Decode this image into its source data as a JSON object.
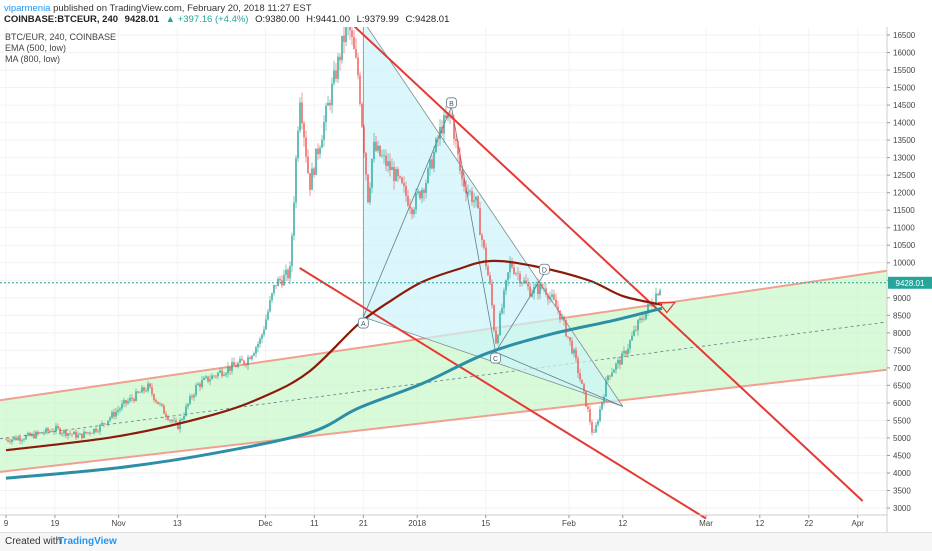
{
  "header": {
    "author": "viparmenia",
    "published": "published on TradingView.com, February 20, 2018 11:27 EST",
    "symbol": "COINBASE:BTCEUR, 240",
    "last": "9428.01",
    "change_arrow": "▲",
    "change": "+397.16 (+4.4%)",
    "open": "O:9380.00",
    "high": "H:9441.00",
    "low": "L:9379.99",
    "close": "C:9428.01"
  },
  "legend": {
    "pair": "BTC/EUR, 240, COINBASE",
    "ema": "EMA (500, low)",
    "ma": "MA (800, low)"
  },
  "footer": {
    "created": "Created with",
    "logo": "TradingView"
  },
  "price_label": "9428.01",
  "colors": {
    "bull": "#26a69a",
    "bear": "#ef5350",
    "ema": "#8b1a0a",
    "ma": "#2c8fa5",
    "trend": "#e53935",
    "channel_fill": "#b9f6b9",
    "channel_edge": "#f0a090",
    "triangle_fill": "#ccf3fa",
    "price_line": "#26a69a",
    "price_label_bg": "#26a69a"
  },
  "chart_data": {
    "type": "candlestick",
    "title": "BTC/EUR, 240, COINBASE",
    "ylim": [
      2750,
      16850
    ],
    "y_ticks": [
      3000,
      3500,
      4000,
      4500,
      5000,
      5500,
      6000,
      6500,
      7000,
      7500,
      8000,
      8500,
      9000,
      9500,
      10000,
      10500,
      11000,
      11500,
      12000,
      12500,
      13000,
      13500,
      14000,
      14500,
      15000,
      15500,
      16000,
      16500
    ],
    "x_ticks": [
      "9",
      "19",
      "Nov",
      "13",
      "Dec",
      "11",
      "21",
      "2018",
      "15",
      "Feb",
      "12",
      "Mar",
      "12",
      "22",
      "Apr"
    ],
    "price_path": [
      {
        "x": "Oct 9",
        "y": 4950
      },
      {
        "x": "Oct 14",
        "y": 5050
      },
      {
        "x": "Oct 19",
        "y": 5250
      },
      {
        "x": "Oct 24",
        "y": 5050
      },
      {
        "x": "Oct 28",
        "y": 5300
      },
      {
        "x": "Nov 2",
        "y": 5950
      },
      {
        "x": "Nov 7",
        "y": 6450
      },
      {
        "x": "Nov 10",
        "y": 5800
      },
      {
        "x": "Nov 13",
        "y": 5300
      },
      {
        "x": "Nov 17",
        "y": 6500
      },
      {
        "x": "Nov 22",
        "y": 6900
      },
      {
        "x": "Nov 27",
        "y": 7200
      },
      {
        "x": "Nov 30",
        "y": 7800
      },
      {
        "x": "Dec 3",
        "y": 9400
      },
      {
        "x": "Dec 6",
        "y": 9700
      },
      {
        "x": "Dec 8",
        "y": 14900
      },
      {
        "x": "Dec 10",
        "y": 12200
      },
      {
        "x": "Dec 13",
        "y": 14000
      },
      {
        "x": "Dec 15",
        "y": 15200
      },
      {
        "x": "Dec 17",
        "y": 16400
      },
      {
        "x": "Dec 18",
        "y": 16800
      },
      {
        "x": "Dec 20",
        "y": 15300
      },
      {
        "x": "Dec 22",
        "y": 11800
      },
      {
        "x": "Dec 23",
        "y": 13300
      },
      {
        "x": "Dec 27",
        "y": 12600
      },
      {
        "x": "Dec 31",
        "y": 11600
      },
      {
        "x": "Jan 3",
        "y": 12400
      },
      {
        "x": "Jan 6",
        "y": 13900
      },
      {
        "x": "Jan 8",
        "y": 14200
      },
      {
        "x": "Jan 10",
        "y": 12400
      },
      {
        "x": "Jan 13",
        "y": 11700
      },
      {
        "x": "Jan 16",
        "y": 9200
      },
      {
        "x": "Jan 17",
        "y": 7700
      },
      {
        "x": "Jan 20",
        "y": 10000
      },
      {
        "x": "Jan 24",
        "y": 9200
      },
      {
        "x": "Jan 27",
        "y": 9300
      },
      {
        "x": "Jan 30",
        "y": 8600
      },
      {
        "x": "Feb 2",
        "y": 7400
      },
      {
        "x": "Feb 5",
        "y": 5700
      },
      {
        "x": "Feb 6",
        "y": 5000
      },
      {
        "x": "Feb 9",
        "y": 6800
      },
      {
        "x": "Feb 12",
        "y": 7300
      },
      {
        "x": "Feb 15",
        "y": 8200
      },
      {
        "x": "Feb 18",
        "y": 8900
      },
      {
        "x": "Feb 20",
        "y": 9428
      }
    ],
    "series": [
      {
        "name": "EMA (500, low)",
        "values": [
          {
            "x": "Oct 9",
            "y": 4650
          },
          {
            "x": "Nov 1",
            "y": 5050
          },
          {
            "x": "Nov 20",
            "y": 5650
          },
          {
            "x": "Dec 1",
            "y": 6200
          },
          {
            "x": "Dec 10",
            "y": 6900
          },
          {
            "x": "Dec 20",
            "y": 8250
          },
          {
            "x": "Dec 27",
            "y": 8950
          },
          {
            "x": "Jan 2",
            "y": 9450
          },
          {
            "x": "Jan 9",
            "y": 9800
          },
          {
            "x": "Jan 16",
            "y": 10050
          },
          {
            "x": "Jan 25",
            "y": 9900
          },
          {
            "x": "Feb 5",
            "y": 9500
          },
          {
            "x": "Feb 12",
            "y": 9050
          },
          {
            "x": "Feb 20",
            "y": 8800
          }
        ]
      },
      {
        "name": "MA (800, low)",
        "values": [
          {
            "x": "Oct 9",
            "y": 3850
          },
          {
            "x": "Nov 1",
            "y": 4150
          },
          {
            "x": "Nov 20",
            "y": 4550
          },
          {
            "x": "Dec 10",
            "y": 5150
          },
          {
            "x": "Dec 20",
            "y": 5850
          },
          {
            "x": "Jan 2",
            "y": 6550
          },
          {
            "x": "Jan 15",
            "y": 7400
          },
          {
            "x": "Jan 28",
            "y": 7950
          },
          {
            "x": "Feb 10",
            "y": 8350
          },
          {
            "x": "Feb 20",
            "y": 8700
          }
        ]
      }
    ],
    "annotations": {
      "channel_upper": [
        {
          "x": "Oct 9",
          "y": 6100
        },
        {
          "x": "Apr 1",
          "y": 9650
        }
      ],
      "channel_lower": [
        {
          "x": "Oct 9",
          "y": 4050
        },
        {
          "x": "Apr 1",
          "y": 6850
        }
      ],
      "channel_mid": [
        {
          "x": "Oct 9",
          "y": 5000
        },
        {
          "x": "Apr 1",
          "y": 8200
        }
      ],
      "trend_down_1": [
        {
          "x": "Dec 18",
          "y": 16900
        },
        {
          "x": "Apr 2",
          "y": 3200
        }
      ],
      "trend_down_2": [
        {
          "x": "Dec 8",
          "y": 9850
        },
        {
          "x": "Mar 1",
          "y": 2700
        }
      ],
      "points": [
        {
          "label": "A",
          "x": "Dec 21",
          "y": 8450
        },
        {
          "label": "B",
          "x": "Jan 8",
          "y": 14450
        },
        {
          "label": "C",
          "x": "Jan 17",
          "y": 7450
        },
        {
          "label": "D",
          "x": "Jan 27",
          "y": 9700
        }
      ],
      "pattern_end": {
        "x": "Feb 12",
        "y": 5900
      }
    }
  }
}
